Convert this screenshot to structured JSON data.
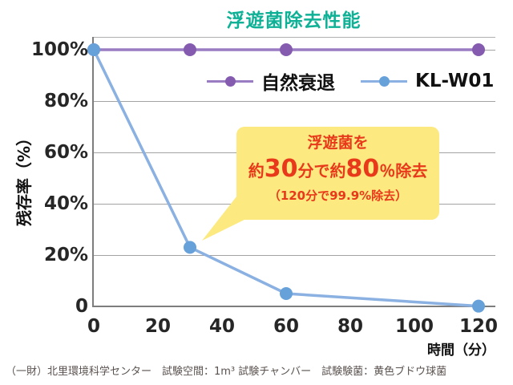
{
  "title": "浮遊菌除去性能",
  "legend": [
    {
      "label": "自然衰退"
    },
    {
      "label": "KL-W01"
    }
  ],
  "y_axis": {
    "label": "残存率（%）",
    "ticks": [
      "100%",
      "80%",
      "60%",
      "40%",
      "20%",
      "0"
    ]
  },
  "x_axis": {
    "label": "時間（分）",
    "ticks": [
      "0",
      "20",
      "40",
      "60",
      "80",
      "100",
      "120"
    ]
  },
  "annotation": {
    "line1": "浮遊菌を",
    "line2": {
      "seg1": "約",
      "num1": "30",
      "seg2": "分で約",
      "num2": "80",
      "seg3": "％除去"
    },
    "line3": "（120分で99.9%除去）"
  },
  "footnote": "（一財）北里環境科学センター　試験空間：1m³ 試験チャンバー　試験験菌：黄色ブドウ球菌",
  "colors": {
    "title": "#0fb196",
    "natural_decay_line": "#9a7cc2",
    "natural_decay_dot": "#855bb0",
    "klw01_line": "#8ab1e1",
    "klw01_dot": "#67a1da",
    "annotation_bg": "#fce97f",
    "annotation_text": "#e8391a",
    "gridline": "#a3a3a3"
  },
  "chart_data": {
    "type": "line",
    "title": "浮遊菌除去性能",
    "xlabel": "時間（分）",
    "ylabel": "残存率（%）",
    "x": [
      0,
      30,
      60,
      120
    ],
    "series": [
      {
        "name": "自然衰退",
        "values": [
          100,
          100,
          100,
          100
        ],
        "line_color": "#9a7cc2",
        "dot_color": "#855bb0"
      },
      {
        "name": "KL-W01",
        "values": [
          100,
          23,
          5,
          0.1
        ],
        "line_color": "#8ab1e1",
        "dot_color": "#67a1da"
      }
    ],
    "xlim": [
      0,
      120
    ],
    "ylim": [
      0,
      100
    ],
    "x_tick_step": 20,
    "y_tick_step": 20,
    "grid": true,
    "legend_position": "top-inside",
    "annotation_text": "浮遊菌を 約30分で約80％除去 （120分で99.9%除去）"
  }
}
